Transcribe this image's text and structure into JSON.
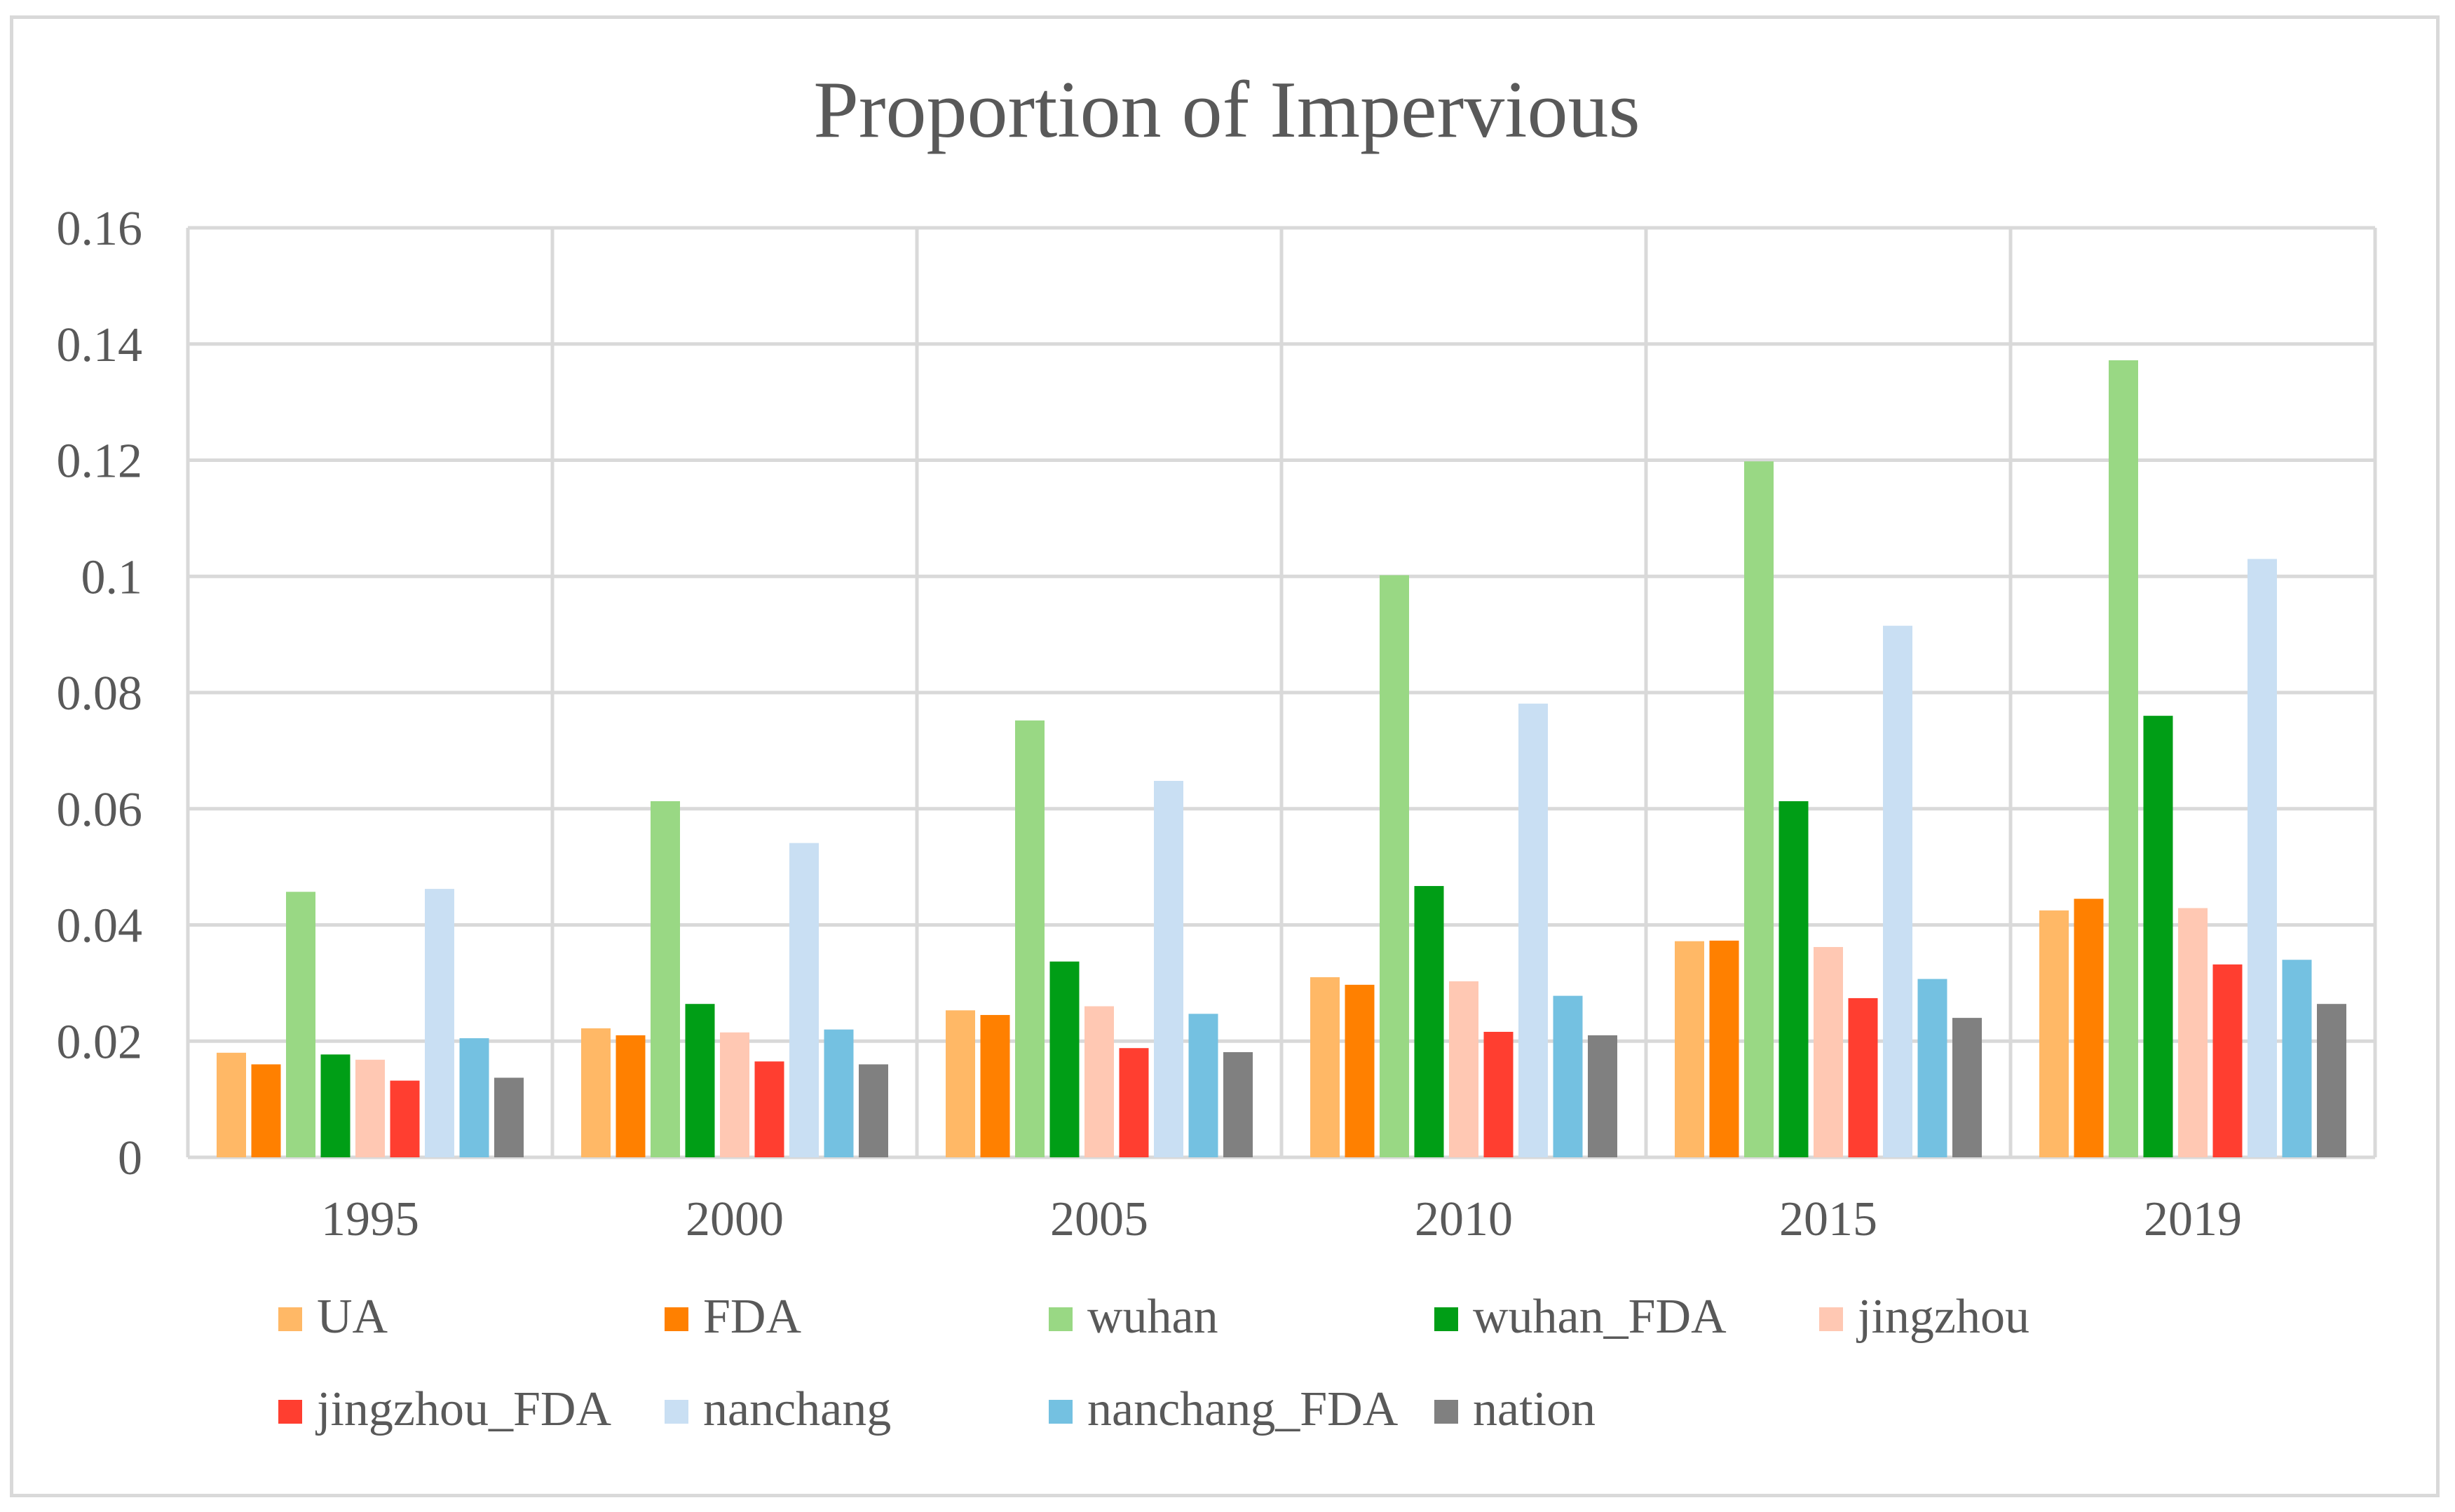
{
  "chart_data": {
    "type": "bar",
    "title": "Proportion of Impervious",
    "xlabel": "",
    "ylabel": "",
    "categories": [
      "1995",
      "2000",
      "2005",
      "2010",
      "2015",
      "2019"
    ],
    "yticks": [
      "0",
      "0.02",
      "0.04",
      "0.06",
      "0.08",
      "0.1",
      "0.12",
      "0.14",
      "0.16"
    ],
    "ylim": [
      0,
      0.16
    ],
    "grid": true,
    "legend_position": "bottom",
    "series": [
      {
        "name": "UA",
        "color": "#ffb866",
        "values": [
          0.018,
          0.0222,
          0.0253,
          0.031,
          0.0372,
          0.0425
        ]
      },
      {
        "name": "FDA",
        "color": "#ff8000",
        "values": [
          0.016,
          0.021,
          0.0245,
          0.0297,
          0.0373,
          0.0445
        ]
      },
      {
        "name": "wuhan",
        "color": "#99d884",
        "values": [
          0.0457,
          0.0613,
          0.0752,
          0.1002,
          0.1198,
          0.1372
        ]
      },
      {
        "name": "wuhan_FDA",
        "color": "#009e16",
        "values": [
          0.0177,
          0.0264,
          0.0337,
          0.0467,
          0.0613,
          0.076
        ]
      },
      {
        "name": "jingzhou",
        "color": "#ffc8b3",
        "values": [
          0.0168,
          0.0215,
          0.026,
          0.0303,
          0.0362,
          0.0429
        ]
      },
      {
        "name": "jingzhou_FDA",
        "color": "#ff3e30",
        "values": [
          0.0132,
          0.0165,
          0.0188,
          0.0216,
          0.0274,
          0.0332
        ]
      },
      {
        "name": "nanchang",
        "color": "#c9dff3",
        "values": [
          0.0462,
          0.0541,
          0.0648,
          0.0781,
          0.0915,
          0.103
        ]
      },
      {
        "name": "nanchang_FDA",
        "color": "#74c1e1",
        "values": [
          0.0205,
          0.022,
          0.0247,
          0.0278,
          0.0307,
          0.034
        ]
      },
      {
        "name": "nation",
        "color": "#808080",
        "values": [
          0.0137,
          0.016,
          0.0181,
          0.021,
          0.024,
          0.0264
        ]
      }
    ]
  }
}
